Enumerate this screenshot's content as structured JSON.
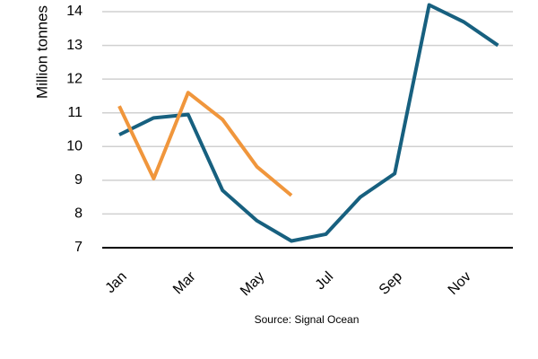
{
  "chart_data": {
    "type": "line",
    "y_label": "Million tonnes",
    "source": "Source: Signal Ocean",
    "categories": [
      "Jan",
      null,
      "Mar",
      null,
      "May",
      null,
      "Jul",
      null,
      "Sep",
      null,
      "Nov",
      null
    ],
    "series": [
      {
        "color": "#17607f",
        "values": [
          10.35,
          10.85,
          10.95,
          8.7,
          7.8,
          7.2,
          7.4,
          8.5,
          9.2,
          14.2,
          13.7,
          13.0
        ]
      },
      {
        "color": "#f0963c",
        "values": [
          11.2,
          9.05,
          11.6,
          10.8,
          9.4,
          8.55,
          null,
          null,
          null,
          null,
          null,
          null
        ]
      }
    ],
    "ylim": [
      7,
      14
    ],
    "yticks": [
      7,
      8,
      9,
      10,
      11,
      12,
      13,
      14
    ],
    "grid": true
  }
}
